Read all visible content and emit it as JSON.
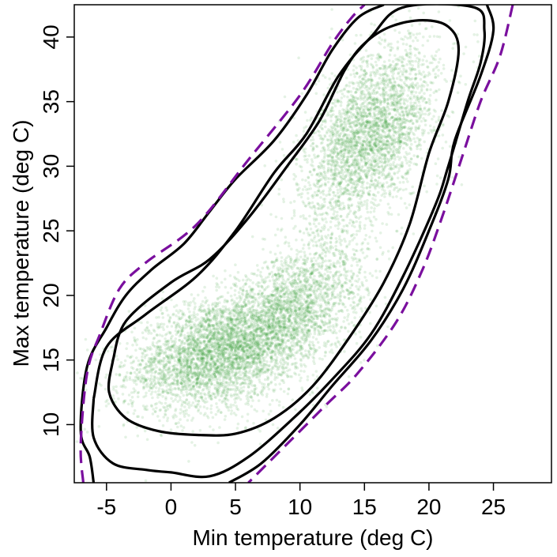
{
  "chart_data": {
    "type": "scatter",
    "title": "",
    "xlabel": "Min temperature (deg C)",
    "ylabel": "Max temperature (deg C)",
    "xlim": [
      -7.5,
      29.5
    ],
    "ylim": [
      5.5,
      42.5
    ],
    "xticks": [
      "-5",
      "0",
      "5",
      "10",
      "15",
      "20",
      "25"
    ],
    "yticks": [
      "10",
      "15",
      "20",
      "25",
      "30",
      "35",
      "40"
    ],
    "grid": false,
    "legend": "none",
    "point_color": "#2e9b2e",
    "point_cloud": {
      "clusters": [
        {
          "center": [
            3.0,
            15.5
          ],
          "spread": [
            3.2,
            2.2
          ],
          "correlation": 0.35,
          "weight": 0.35
        },
        {
          "center": [
            9.0,
            18.5
          ],
          "spread": [
            3.0,
            3.0
          ],
          "correlation": 0.55,
          "weight": 0.3
        },
        {
          "center": [
            15.5,
            32.5
          ],
          "spread": [
            2.6,
            3.5
          ],
          "correlation": 0.5,
          "weight": 0.35
        }
      ],
      "n_points": 9000
    },
    "contours": [
      {
        "name": "inner",
        "color": "#000000",
        "dash": "solid",
        "points": [
          [
            -4.5,
            15.0
          ],
          [
            -3.5,
            18.0
          ],
          [
            0.0,
            21.0
          ],
          [
            3.0,
            22.8
          ],
          [
            6.0,
            26.0
          ],
          [
            9.0,
            30.0
          ],
          [
            11.5,
            33.5
          ],
          [
            13.5,
            37.5
          ],
          [
            15.0,
            39.5
          ],
          [
            17.0,
            40.8
          ],
          [
            19.5,
            41.3
          ],
          [
            21.5,
            40.8
          ],
          [
            22.3,
            39.0
          ],
          [
            21.5,
            35.0
          ],
          [
            20.0,
            31.0
          ],
          [
            18.5,
            25.5
          ],
          [
            16.5,
            21.0
          ],
          [
            14.0,
            17.0
          ],
          [
            11.0,
            13.0
          ],
          [
            8.0,
            10.5
          ],
          [
            5.0,
            9.3
          ],
          [
            2.0,
            9.2
          ],
          [
            -1.0,
            9.5
          ],
          [
            -3.5,
            10.5
          ],
          [
            -4.8,
            12.5
          ],
          [
            -4.5,
            15.0
          ]
        ]
      },
      {
        "name": "middle",
        "color": "#000000",
        "dash": "solid",
        "points": [
          [
            -6.0,
            12.0
          ],
          [
            -5.0,
            16.0
          ],
          [
            -2.0,
            18.5
          ],
          [
            2.0,
            21.5
          ],
          [
            5.0,
            25.0
          ],
          [
            8.0,
            29.5
          ],
          [
            10.5,
            32.5
          ],
          [
            13.0,
            37.0
          ],
          [
            15.5,
            40.0
          ],
          [
            18.0,
            42.3
          ],
          [
            23.5,
            42.3
          ],
          [
            24.3,
            40.5
          ],
          [
            24.0,
            38.0
          ],
          [
            23.0,
            35.0
          ],
          [
            21.5,
            30.0
          ],
          [
            20.5,
            27.0
          ],
          [
            18.0,
            21.5
          ],
          [
            15.5,
            17.0
          ],
          [
            12.5,
            13.5
          ],
          [
            9.5,
            10.5
          ],
          [
            6.0,
            7.5
          ],
          [
            3.0,
            6.0
          ],
          [
            0.0,
            6.3
          ],
          [
            -2.0,
            6.5
          ],
          [
            -4.5,
            7.0
          ],
          [
            -6.0,
            9.0
          ],
          [
            -6.0,
            12.0
          ]
        ]
      },
      {
        "name": "outer",
        "color": "#000000",
        "dash": "solid",
        "points": [
          [
            -6.0,
            5.5
          ],
          [
            -6.3,
            7.5
          ],
          [
            -7.0,
            9.5
          ],
          [
            -6.5,
            14.5
          ],
          [
            -5.0,
            17.5
          ],
          [
            -3.5,
            20.0
          ],
          [
            -1.5,
            22.0
          ],
          [
            1.0,
            24.0
          ],
          [
            3.0,
            26.5
          ],
          [
            5.0,
            29.0
          ],
          [
            8.0,
            32.0
          ],
          [
            10.5,
            35.5
          ],
          [
            12.5,
            39.0
          ],
          [
            14.5,
            41.5
          ],
          [
            16.5,
            42.5
          ]
        ],
        "points_right": [
          [
            24.5,
            42.5
          ],
          [
            25.0,
            40.5
          ],
          [
            24.0,
            37.0
          ],
          [
            22.0,
            32.0
          ],
          [
            21.5,
            29.0
          ],
          [
            20.0,
            25.0
          ],
          [
            18.0,
            20.5
          ],
          [
            15.5,
            16.5
          ],
          [
            12.5,
            13.0
          ],
          [
            10.0,
            10.0
          ],
          [
            7.0,
            7.0
          ],
          [
            4.5,
            5.5
          ]
        ]
      },
      {
        "name": "hull",
        "color": "#7a0f9e",
        "dash": "dashed",
        "points": [
          [
            -6.8,
            5.5
          ],
          [
            -7.0,
            8.5
          ],
          [
            -6.5,
            14.0
          ],
          [
            -5.5,
            17.0
          ],
          [
            -4.0,
            20.5
          ],
          [
            -2.0,
            22.5
          ],
          [
            2.0,
            25.5
          ],
          [
            6.0,
            30.5
          ],
          [
            10.0,
            35.5
          ],
          [
            12.5,
            39.5
          ],
          [
            14.0,
            41.5
          ],
          [
            15.0,
            42.5
          ]
        ],
        "points_right": [
          [
            26.5,
            42.5
          ],
          [
            25.5,
            38.5
          ],
          [
            24.0,
            35.0
          ],
          [
            22.5,
            30.5
          ],
          [
            21.0,
            26.0
          ],
          [
            19.5,
            22.0
          ],
          [
            17.5,
            18.0
          ],
          [
            14.5,
            14.0
          ],
          [
            12.0,
            11.5
          ],
          [
            9.0,
            8.5
          ],
          [
            6.0,
            5.5
          ]
        ]
      }
    ]
  }
}
